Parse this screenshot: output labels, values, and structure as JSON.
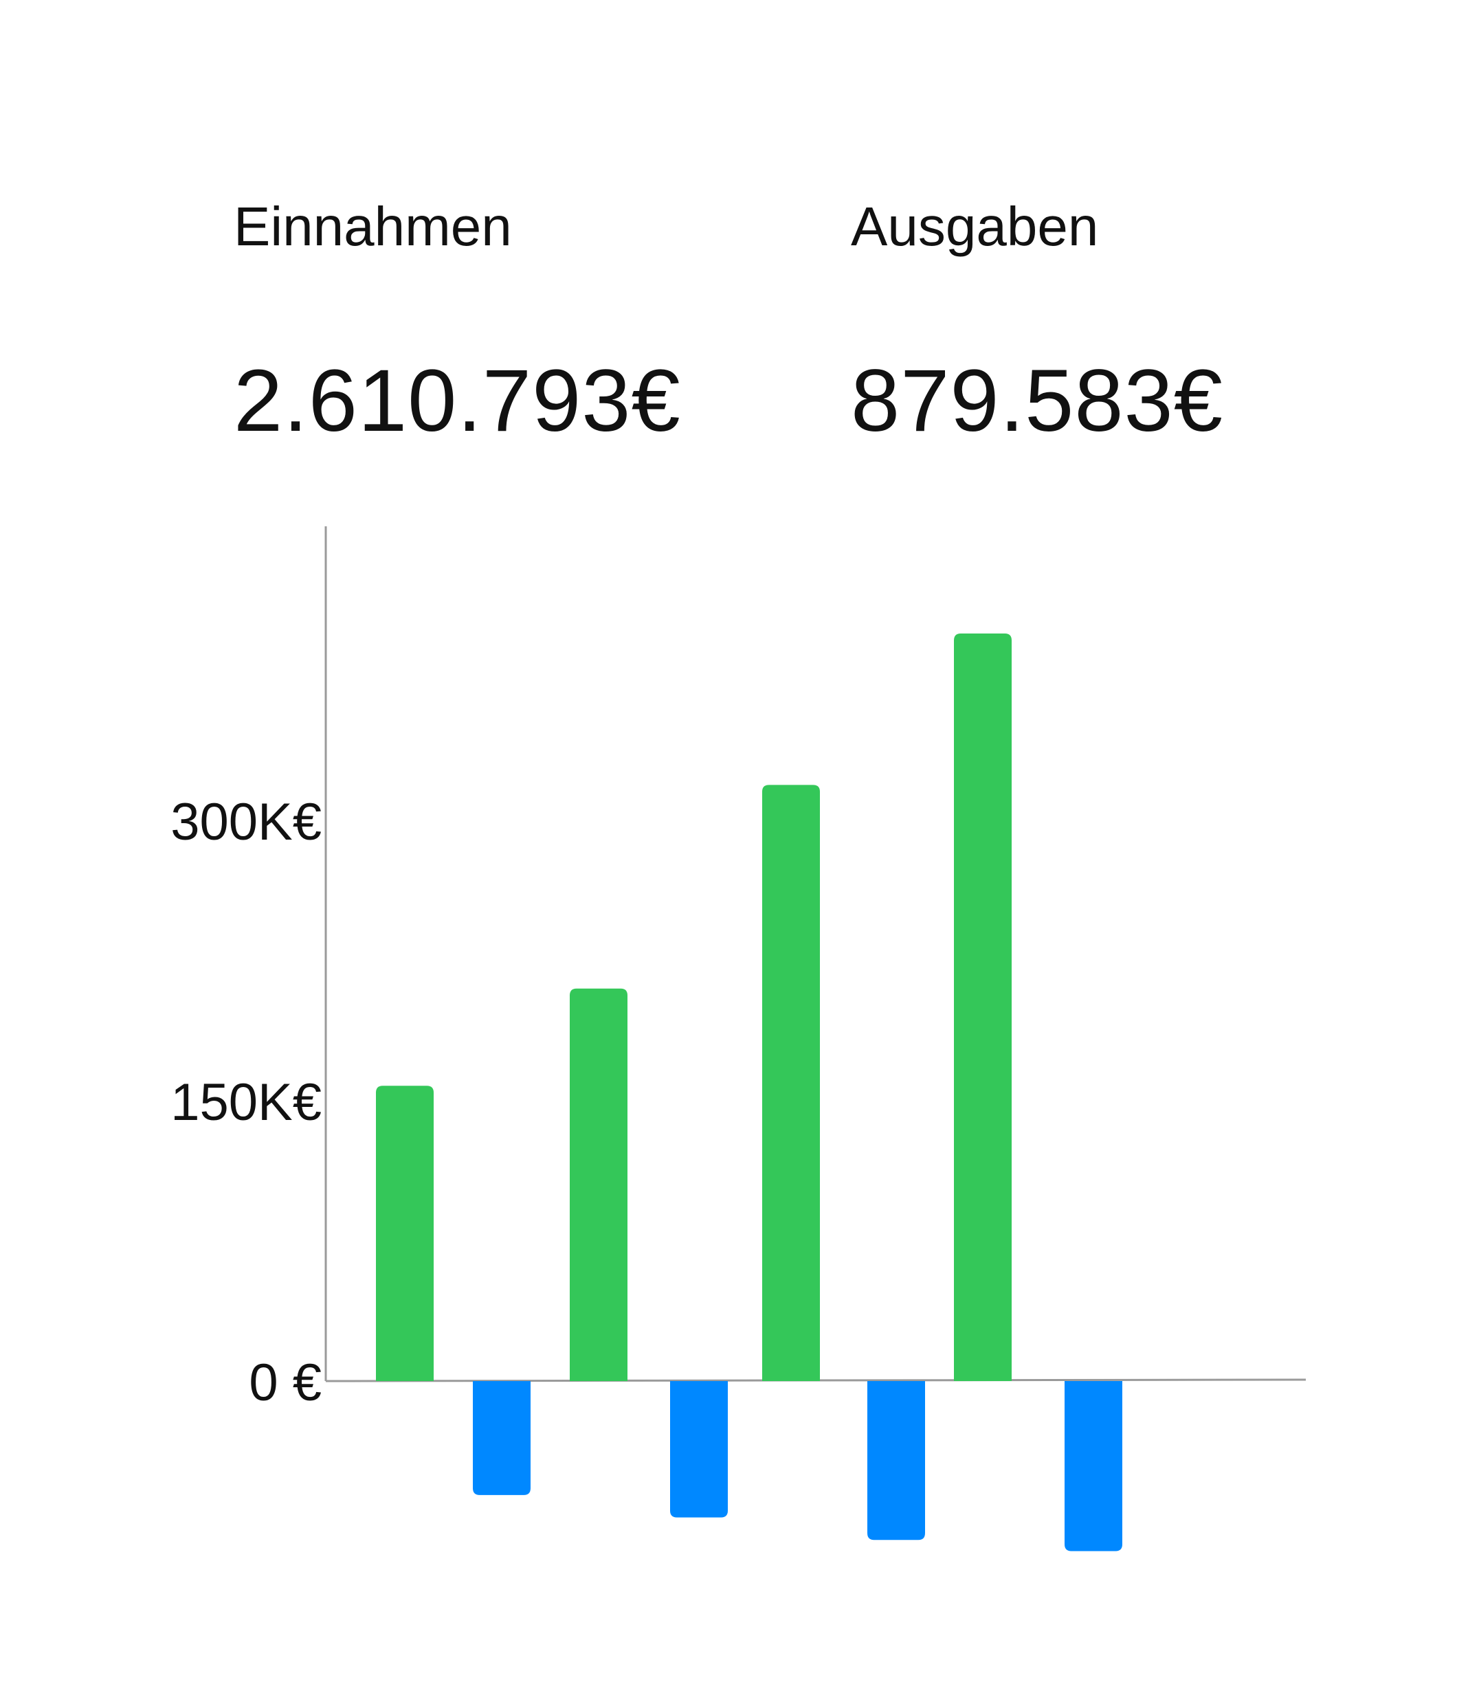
{
  "summary": {
    "income_label": "Einnahmen",
    "income_value": "2.610.793€",
    "expense_label": "Ausgaben",
    "expense_value": "879.583€"
  },
  "chart_data": {
    "type": "bar",
    "title": "",
    "xlabel": "",
    "ylabel": "",
    "ylim": [
      -90000,
      400000
    ],
    "yticks": [
      0,
      150000,
      300000
    ],
    "ytick_labels": [
      "0 €",
      "150K€",
      "300K€"
    ],
    "grid": false,
    "legend": "none",
    "colors": {
      "income": "#34c759",
      "expense": "#0088ff",
      "axis": "#9a9a9a"
    },
    "series": [
      {
        "values": [
          158000,
          210000,
          319000,
          400000
        ]
      },
      {
        "values": [
          -61000,
          -73000,
          -85000,
          -91000
        ]
      }
    ]
  }
}
